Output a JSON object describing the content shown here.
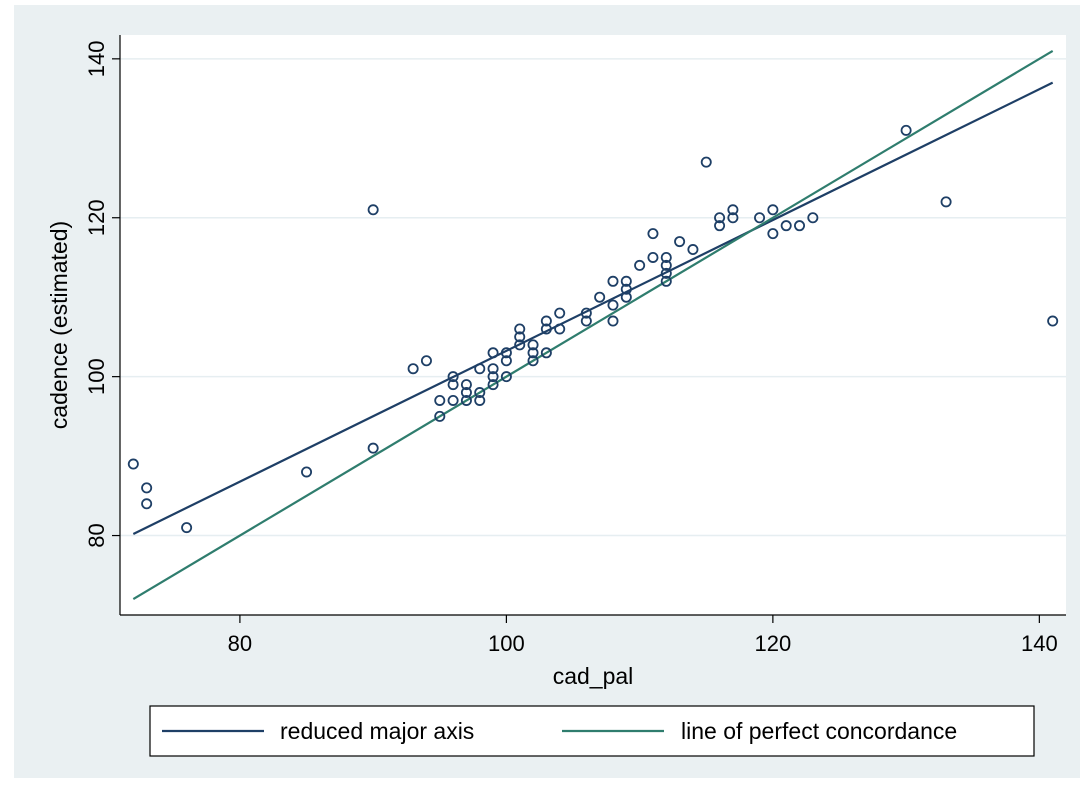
{
  "chart_data": {
    "type": "scatter",
    "xlabel": "cad_pal",
    "ylabel": "cadence (estimated)",
    "xlim": [
      71,
      142
    ],
    "ylim": [
      70,
      143
    ],
    "xticks": [
      80,
      100,
      120,
      140
    ],
    "yticks": [
      80,
      100,
      120,
      140
    ],
    "grid": true,
    "legend_position": "bottom",
    "colors": {
      "plot_bg": "#ffffff",
      "outer_bg": "#eaf0f2",
      "grid": "#e6eef1",
      "markers": "#1e3f66",
      "rma": "#1e3f66",
      "concordance": "#2f7d6e"
    },
    "points": [
      [
        72,
        89
      ],
      [
        73,
        86
      ],
      [
        73,
        84
      ],
      [
        76,
        81
      ],
      [
        85,
        88
      ],
      [
        90,
        121
      ],
      [
        90,
        91
      ],
      [
        93,
        101
      ],
      [
        94,
        102
      ],
      [
        95,
        97
      ],
      [
        95,
        95
      ],
      [
        96,
        100
      ],
      [
        96,
        99
      ],
      [
        96,
        97
      ],
      [
        97,
        99
      ],
      [
        97,
        98
      ],
      [
        97,
        97
      ],
      [
        98,
        101
      ],
      [
        98,
        98
      ],
      [
        98,
        97
      ],
      [
        99,
        103
      ],
      [
        99,
        101
      ],
      [
        99,
        100
      ],
      [
        99,
        99
      ],
      [
        100,
        103
      ],
      [
        100,
        102
      ],
      [
        100,
        100
      ],
      [
        101,
        106
      ],
      [
        101,
        105
      ],
      [
        101,
        104
      ],
      [
        102,
        104
      ],
      [
        102,
        103
      ],
      [
        102,
        102
      ],
      [
        103,
        107
      ],
      [
        103,
        106
      ],
      [
        103,
        103
      ],
      [
        104,
        108
      ],
      [
        104,
        106
      ],
      [
        106,
        108
      ],
      [
        106,
        107
      ],
      [
        107,
        110
      ],
      [
        108,
        112
      ],
      [
        108,
        109
      ],
      [
        108,
        107
      ],
      [
        109,
        112
      ],
      [
        109,
        111
      ],
      [
        109,
        110
      ],
      [
        110,
        114
      ],
      [
        111,
        118
      ],
      [
        111,
        115
      ],
      [
        112,
        115
      ],
      [
        112,
        114
      ],
      [
        112,
        113
      ],
      [
        112,
        112
      ],
      [
        113,
        117
      ],
      [
        114,
        116
      ],
      [
        115,
        127
      ],
      [
        116,
        120
      ],
      [
        116,
        119
      ],
      [
        117,
        121
      ],
      [
        117,
        120
      ],
      [
        119,
        120
      ],
      [
        120,
        121
      ],
      [
        120,
        118
      ],
      [
        121,
        119
      ],
      [
        122,
        119
      ],
      [
        123,
        120
      ],
      [
        130,
        131
      ],
      [
        133,
        122
      ],
      [
        141,
        107
      ]
    ],
    "lines": [
      {
        "name": "reduced major axis",
        "color": "#1e3f66",
        "x": [
          72,
          141
        ],
        "y": [
          80.2,
          137
        ]
      },
      {
        "name": "line of perfect concordance",
        "color": "#2f7d6e",
        "x": [
          72,
          141
        ],
        "y": [
          72,
          141
        ]
      }
    ]
  }
}
